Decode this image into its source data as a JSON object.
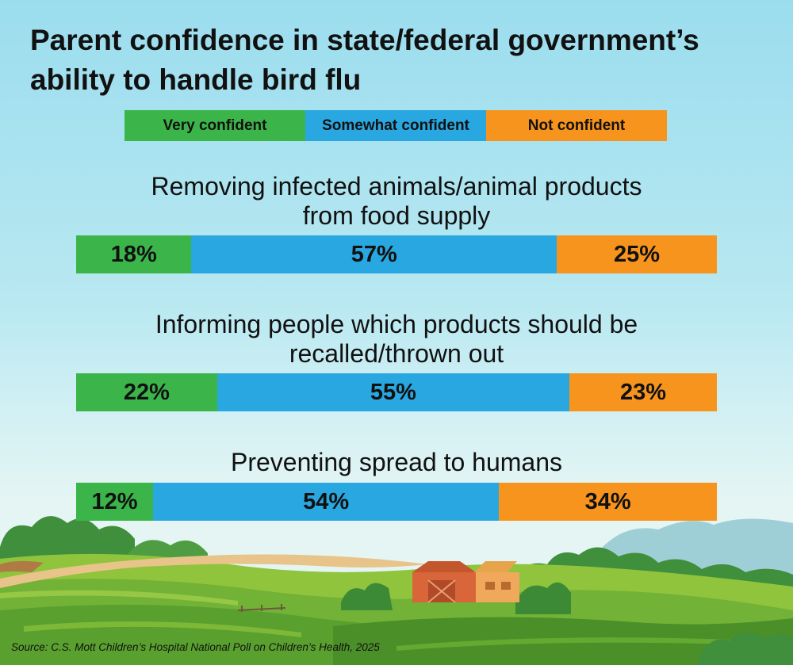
{
  "title": "Parent confidence in state/federal government’s ability to handle bird flu",
  "colors": {
    "very": "#3bb54a",
    "somewhat": "#29a7e1",
    "not": "#f7941d"
  },
  "legend": {
    "very": "Very confident",
    "somewhat": "Somewhat confident",
    "not": "Not confident"
  },
  "chart_data": {
    "type": "bar",
    "stacked": true,
    "orientation": "horizontal",
    "title": "Parent confidence in state/federal government’s ability to handle bird flu",
    "categories": [
      "Removing infected animals/animal products from food supply",
      "Informing people which products should be recalled/thrown out",
      "Preventing spread to humans"
    ],
    "series": [
      {
        "name": "Very confident",
        "values": [
          18,
          22,
          12
        ]
      },
      {
        "name": "Somewhat confident",
        "values": [
          57,
          55,
          54
        ]
      },
      {
        "name": "Not confident",
        "values": [
          25,
          23,
          34
        ]
      }
    ],
    "data_labels": [
      [
        "18%",
        "57%",
        "25%"
      ],
      [
        "22%",
        "55%",
        "23%"
      ],
      [
        "12%",
        "54%",
        "34%"
      ]
    ],
    "legend_position": "top",
    "unit": "%"
  },
  "questions": [
    {
      "line1": "Removing infected animals/animal products",
      "line2": "from food supply"
    },
    {
      "line1": "Informing people which products should be",
      "line2": "recalled/thrown out"
    },
    {
      "line1": "Preventing spread to humans",
      "line2": ""
    }
  ],
  "source": "Source: C.S. Mott Children’s Hospital National Poll on Children’s Health, 2025"
}
